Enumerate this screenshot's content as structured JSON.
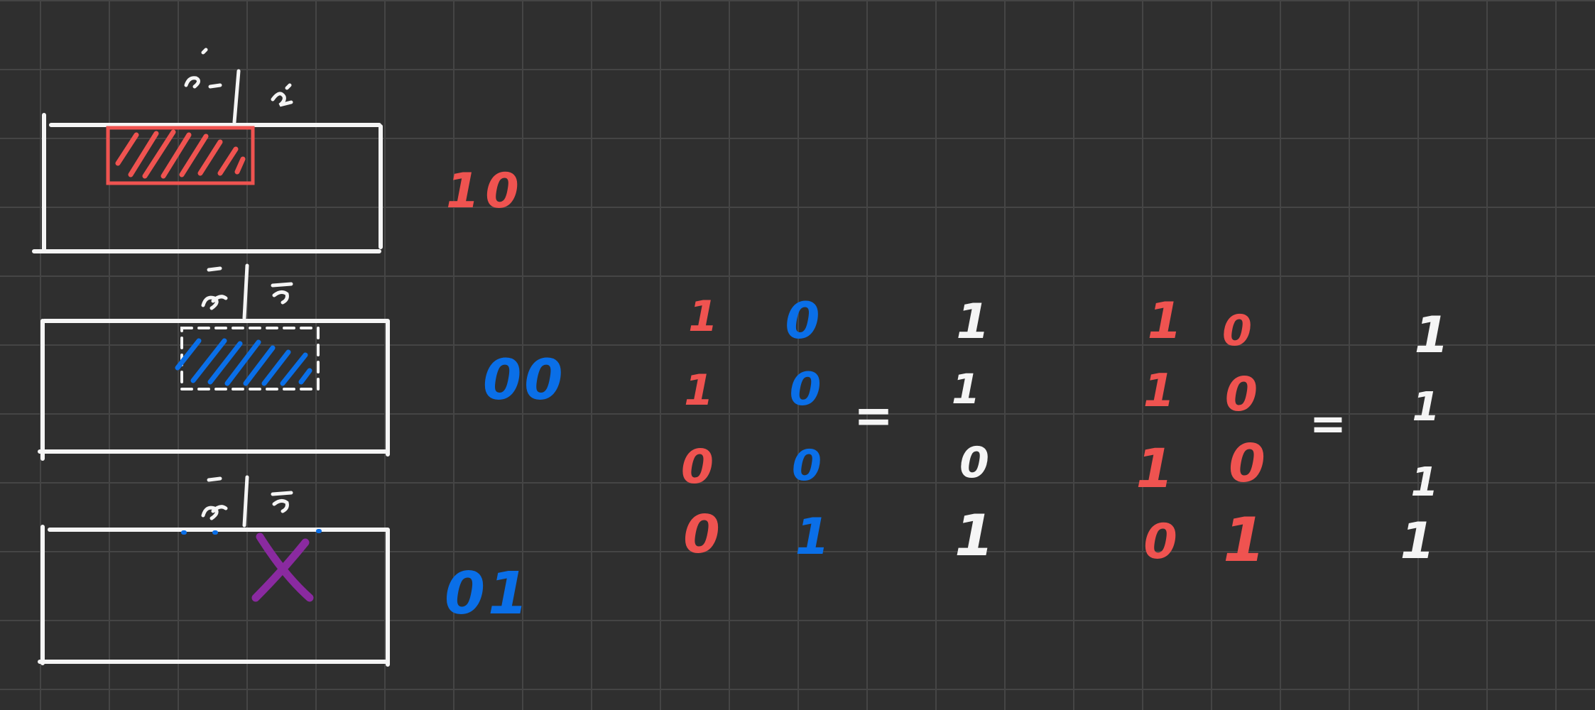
{
  "colors": {
    "background": "#2f2f2f",
    "grid": "#454545",
    "white": "#f5f5f5",
    "red": "#ef5350",
    "blue": "#0a6fe8",
    "purple": "#8a2aa0"
  },
  "panels": [
    {
      "code": "10",
      "mark": "red-hatched-window"
    },
    {
      "code": "00",
      "mark": "blue-hatched-window"
    },
    {
      "code": "01",
      "mark": "purple-x"
    }
  ],
  "table_1": {
    "col_a": [
      "1",
      "1",
      "0",
      "0"
    ],
    "col_b": [
      "0",
      "0",
      "0",
      "1"
    ],
    "equals": "=",
    "result": [
      "1",
      "1",
      "0",
      "1"
    ]
  },
  "table_2": {
    "col_a": [
      "1",
      "1",
      "1",
      "0"
    ],
    "col_b": [
      "0",
      "0",
      "0",
      "1"
    ],
    "equals": "=",
    "result": [
      "1",
      "1",
      "1",
      "1"
    ]
  }
}
